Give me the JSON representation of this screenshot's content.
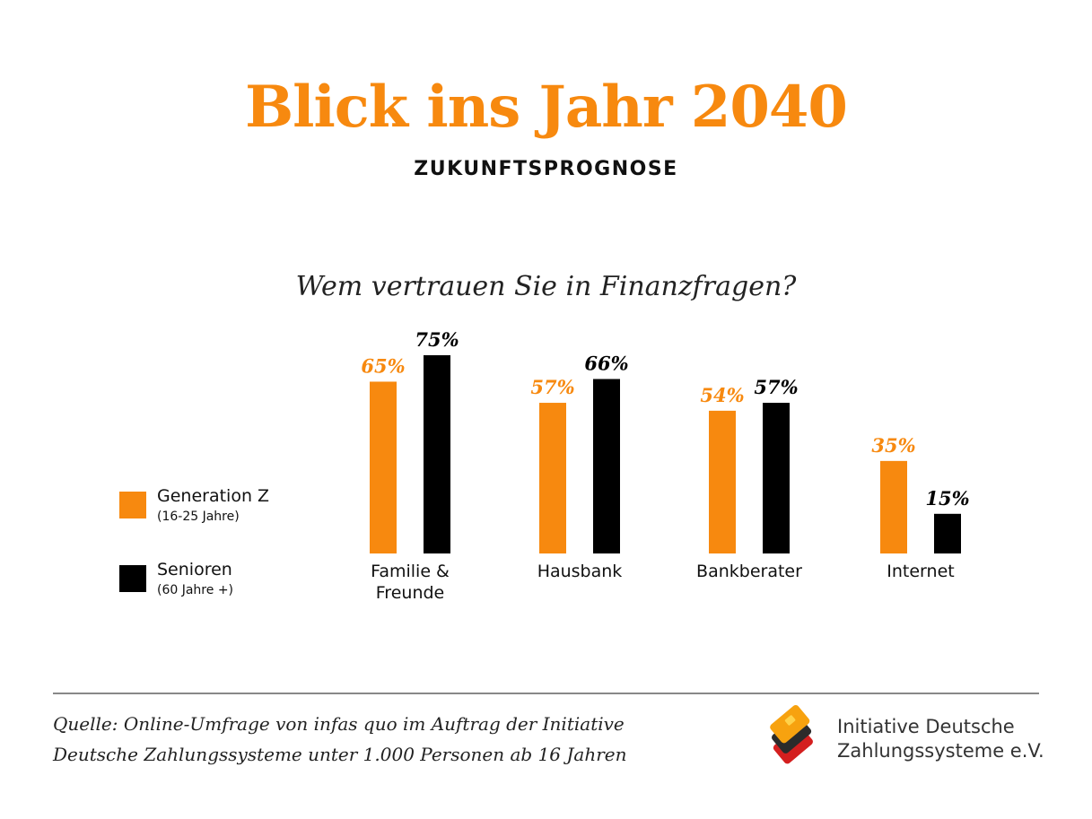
{
  "header": {
    "title": "Blick ins Jahr 2040",
    "subtitle": "ZUKUNFTSPROGNOSE",
    "question": "Wem vertrauen Sie in Finanzfragen?"
  },
  "legend": [
    {
      "name": "Generation Z",
      "sub": "(16-25 Jahre)",
      "color": "#f7890f"
    },
    {
      "name": "Senioren",
      "sub": "(60 Jahre +)",
      "color": "#000000"
    }
  ],
  "colors": {
    "accent": "#f7890f",
    "black": "#000000"
  },
  "chart_data": {
    "type": "bar",
    "categories": [
      [
        "Familie &",
        "Freunde"
      ],
      [
        "Hausbank"
      ],
      [
        "Bankberater"
      ],
      [
        "Internet"
      ]
    ],
    "series": [
      {
        "name": "Generation Z",
        "values": [
          65,
          57,
          54,
          35
        ],
        "labels": [
          "65%",
          "57%",
          "54%",
          "35%"
        ]
      },
      {
        "name": "Senioren",
        "values": [
          75,
          66,
          57,
          15
        ],
        "labels": [
          "75%",
          "66%",
          "57%",
          "15%"
        ]
      }
    ],
    "ylim": [
      0,
      75
    ],
    "grid": false
  },
  "footer": {
    "source_line1": "Quelle: Online-Umfrage von infas quo im Auftrag der Initiative",
    "source_line2": "Deutsche Zahlungssysteme unter 1.000 Personen ab 16 Jahren",
    "logo_line1": "Initiative Deutsche",
    "logo_line2": "Zahlungssysteme e.V.",
    "logo_icon": "cards-logo-icon"
  }
}
